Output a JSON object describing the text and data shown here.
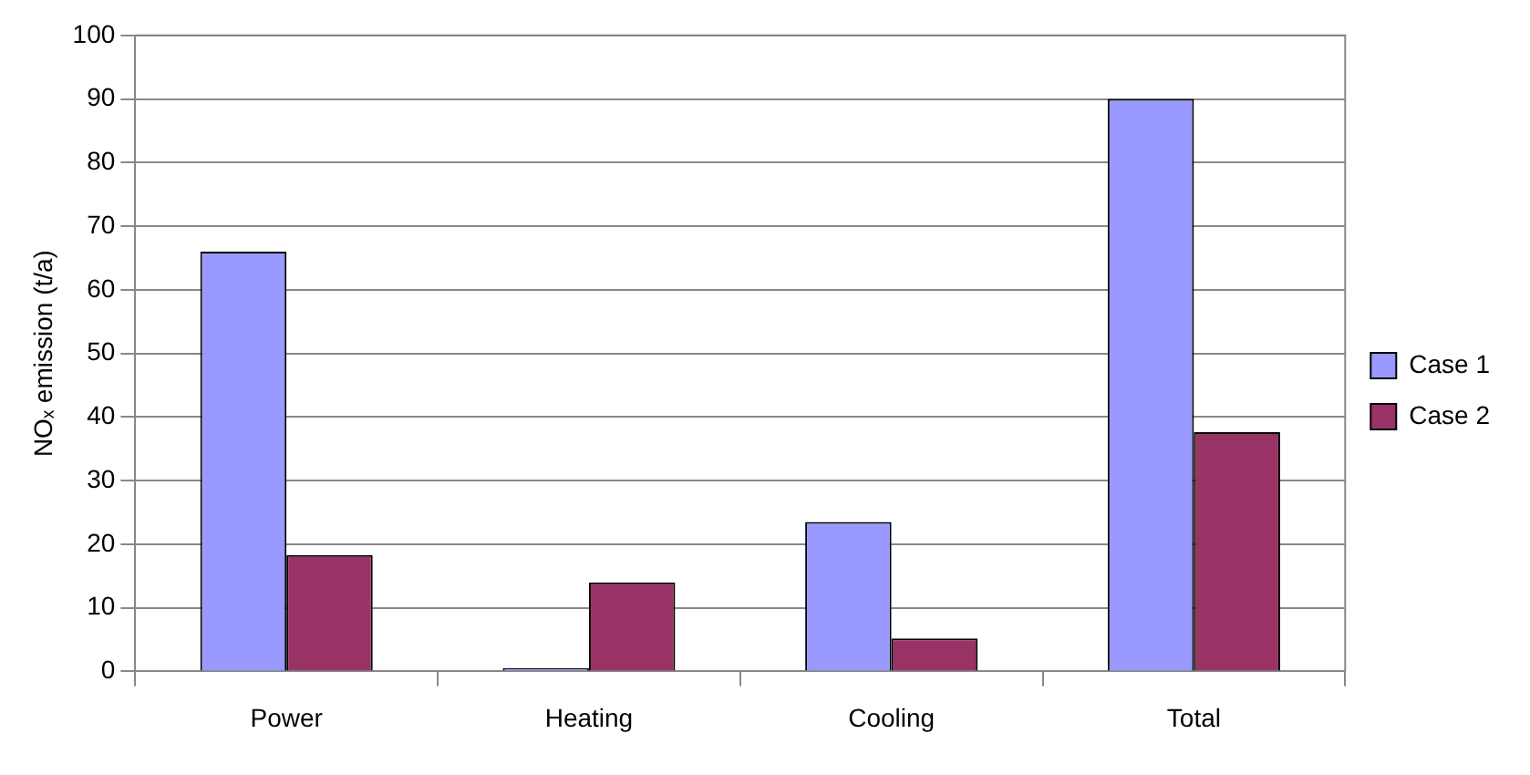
{
  "chart_data": {
    "type": "bar",
    "ylabel": "NOₓ emission (t/a)",
    "categories": [
      "Power",
      "Heating",
      "Cooling",
      "Total"
    ],
    "series": [
      {
        "name": "Case 1",
        "color": "#9999ff",
        "values": [
          66,
          0.5,
          23.5,
          90
        ]
      },
      {
        "name": "Case 2",
        "color": "#993366",
        "values": [
          18.3,
          14,
          5.2,
          37.6
        ]
      }
    ],
    "ylim": [
      0,
      100
    ],
    "yticks": [
      0,
      10,
      20,
      30,
      40,
      50,
      60,
      70,
      80,
      90,
      100
    ],
    "grid": "y",
    "legend": "right"
  }
}
